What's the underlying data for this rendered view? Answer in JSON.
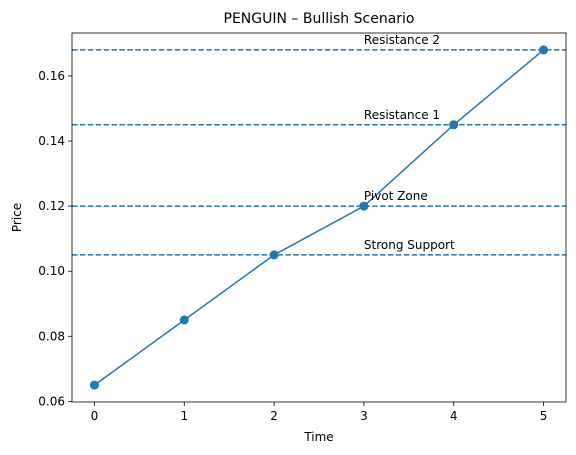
{
  "chart_data": {
    "type": "line",
    "title": "PENGUIN – Bullish Scenario",
    "xlabel": "Time",
    "ylabel": "Price",
    "x": [
      0,
      1,
      2,
      3,
      4,
      5
    ],
    "series": [
      {
        "values": [
          0.065,
          0.085,
          0.105,
          0.12,
          0.145,
          0.168
        ],
        "color": "#1f77b4",
        "marker": "circle"
      }
    ],
    "xlim": [
      -0.25,
      5.25
    ],
    "ylim": [
      0.0598,
      0.1732
    ],
    "xticks": [
      0,
      1,
      2,
      3,
      4,
      5
    ],
    "yticks": [
      0.06,
      0.08,
      0.1,
      0.12,
      0.14,
      0.16
    ],
    "ytick_labels": [
      "0.06",
      "0.08",
      "0.10",
      "0.12",
      "0.14",
      "0.16"
    ],
    "grid": false,
    "reference_lines": [
      {
        "label": "Strong Support",
        "y": 0.105,
        "label_x": 3,
        "color": "#1f77b4",
        "style": "dashed"
      },
      {
        "label": "Pivot Zone",
        "y": 0.12,
        "label_x": 3,
        "color": "#1f77b4",
        "style": "dashed"
      },
      {
        "label": "Resistance 1",
        "y": 0.145,
        "label_x": 3,
        "color": "#1f77b4",
        "style": "dashed"
      },
      {
        "label": "Resistance 2",
        "y": 0.168,
        "label_x": 3,
        "color": "#1f77b4",
        "style": "dashed"
      }
    ]
  }
}
